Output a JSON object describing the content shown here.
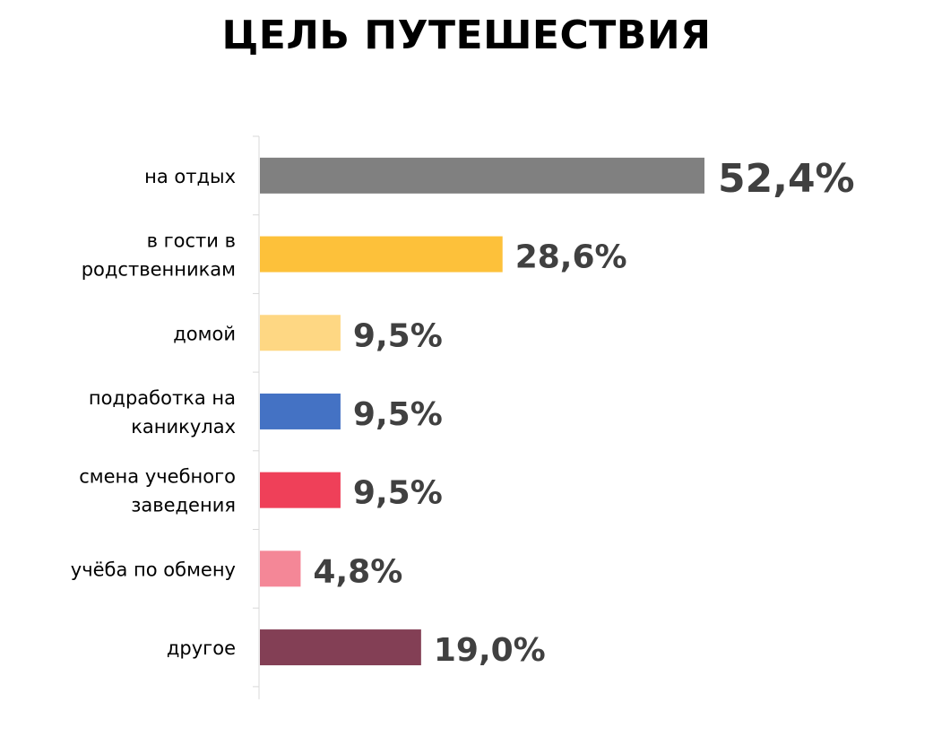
{
  "chart_data": {
    "type": "bar",
    "orientation": "horizontal",
    "title": "ЦЕЛЬ ПУТЕШЕСТВИЯ",
    "categories": [
      [
        "на отдых"
      ],
      [
        "в гости в",
        "родственникам"
      ],
      [
        "домой"
      ],
      [
        "подработка на",
        "каникулах"
      ],
      [
        "смена учебного",
        "заведения"
      ],
      [
        "учёба по обмену"
      ],
      [
        "другое"
      ]
    ],
    "values": [
      52.4,
      28.6,
      9.5,
      9.5,
      9.5,
      4.8,
      19.0
    ],
    "value_labels": [
      "52,4%",
      "28,6%",
      "9,5%",
      "9,5%",
      "9,5%",
      "4,8%",
      "19,0%"
    ],
    "colors": [
      "#808080",
      "#FDC13A",
      "#FED783",
      "#4472C4",
      "#EF4059",
      "#F48797",
      "#833F55"
    ],
    "xlim": [
      0,
      52.4
    ],
    "grid": false,
    "legend": "none"
  }
}
